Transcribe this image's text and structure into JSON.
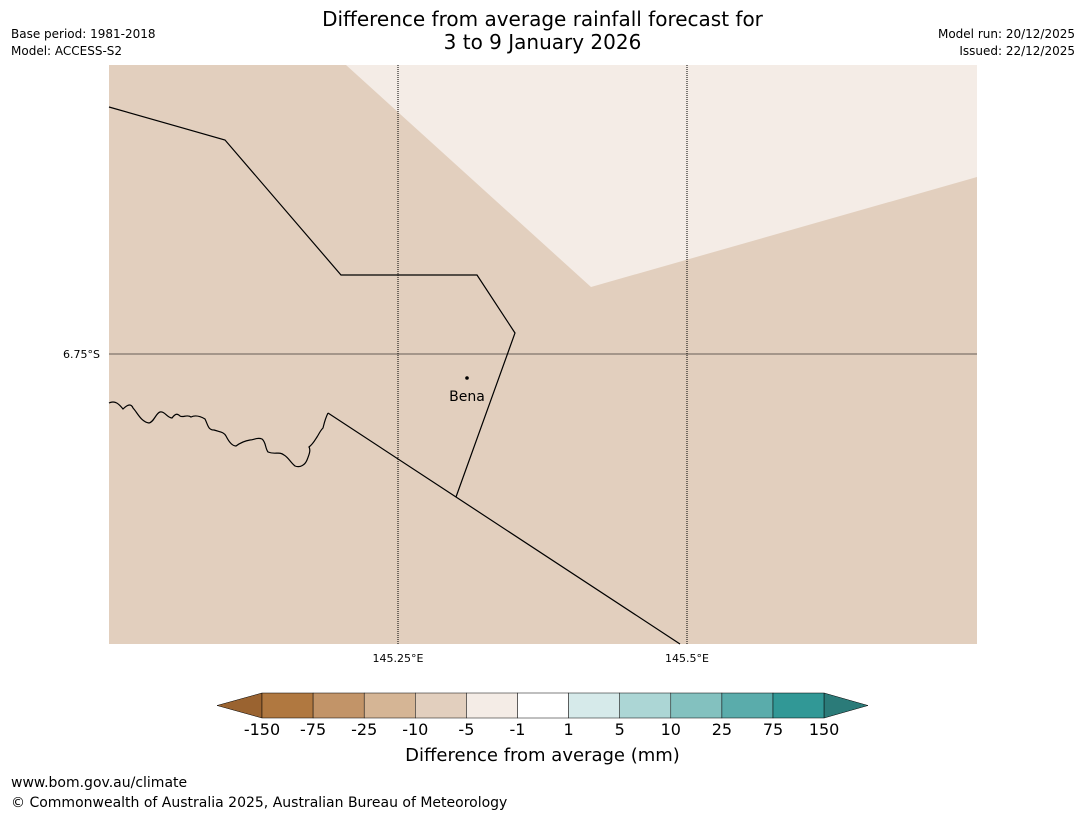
{
  "title": {
    "line1": "Difference from average rainfall forecast for",
    "line2": "3 to 9 January 2026"
  },
  "meta_left": {
    "base_period": "Base period: 1981-2018",
    "model": "Model: ACCESS-S2"
  },
  "meta_right": {
    "model_run": "Model run: 20/12/2025",
    "issued": "Issued: 22/12/2025"
  },
  "map": {
    "latitude_labels": [
      "6.75°S"
    ],
    "longitude_labels": [
      "145.25°E",
      "145.5°E"
    ],
    "place_label": "Bena",
    "background_color": "#e2cfbe",
    "light_region_color": "#f4ece6",
    "grid_color": "#000000"
  },
  "colorbar": {
    "title": "Difference from average (mm)",
    "tick_labels": [
      "-150",
      "-75",
      "-25",
      "-10",
      "-5",
      "-1",
      "1",
      "5",
      "10",
      "25",
      "75",
      "150"
    ],
    "colors": [
      "#9a6330",
      "#b07840",
      "#c29468",
      "#d5b595",
      "#e2cfbe",
      "#f4ece6",
      "#ffffff",
      "#d6eaea",
      "#acd6d5",
      "#83c1bf",
      "#5aacab",
      "#319896",
      "#2b7b79"
    ]
  },
  "footer": {
    "url": "www.bom.gov.au/climate",
    "copyright": "© Commonwealth of Australia 2025, Australian Bureau of Meteorology"
  }
}
